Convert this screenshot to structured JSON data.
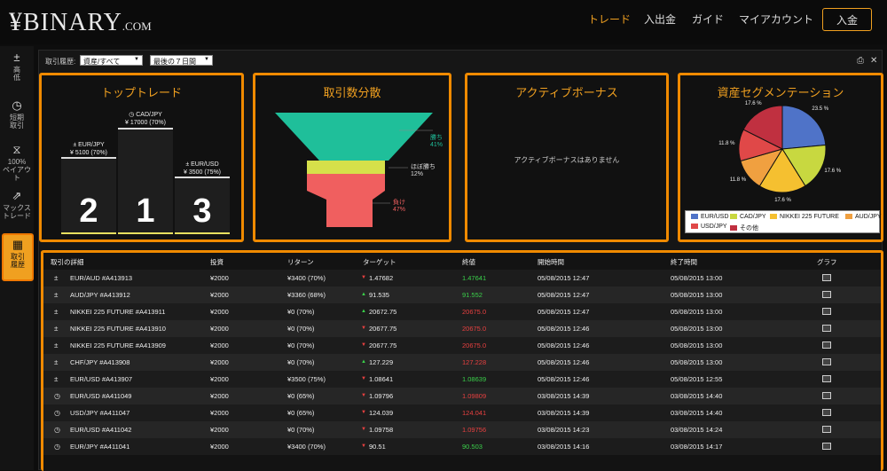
{
  "header": {
    "logo_mark": "¥",
    "logo_text": "BINARY",
    "logo_suffix": ".COM",
    "nav": [
      "トレード",
      "入出金",
      "ガイド",
      "マイアカウント"
    ],
    "deposit_label": "入金"
  },
  "sidebar": {
    "items": [
      {
        "icon": "±",
        "label": "高\n低"
      },
      {
        "icon": "◷",
        "label": "短期\n取引"
      },
      {
        "icon": "⧖",
        "label": "100%\nペイアウト"
      },
      {
        "icon": "⇗",
        "label": "マックス\nトレード"
      },
      {
        "icon": "▦",
        "label": "取引\n履歴"
      }
    ]
  },
  "filters": {
    "label": "取引履歴:",
    "asset_value": "資産/すべて",
    "period_value": "最後の７日間"
  },
  "top_trade": {
    "title": "トップトレード",
    "entries": [
      {
        "rank": "2",
        "asset": "EUR/JPY",
        "amount": "¥ 5100 (70%)"
      },
      {
        "rank": "1",
        "asset": "CAD/JPY",
        "amount": "¥ 17000 (70%)"
      },
      {
        "rank": "3",
        "asset": "EUR/USD",
        "amount": "¥ 3500 (75%)"
      }
    ]
  },
  "distribution": {
    "title": "取引数分散",
    "levels": [
      {
        "label": "勝ち",
        "pct": "41%",
        "color": "#1fbf9a",
        "value": 41
      },
      {
        "label": "ほぼ勝ち",
        "pct": "12%",
        "color": "#d6e04a",
        "value": 12
      },
      {
        "label": "負け",
        "pct": "47%",
        "color": "#f05f5f",
        "value": 47
      }
    ]
  },
  "bonus": {
    "title": "アクティブボーナス",
    "empty_text": "アクティブボーナスはありません"
  },
  "segmentation": {
    "title": "資産セグメンテーション",
    "chart_data": {
      "type": "pie",
      "slices": [
        {
          "name": "EUR/USD",
          "value": 23.5,
          "label": "23.5 %",
          "color": "#4f73c8"
        },
        {
          "name": "CAD/JPY",
          "value": 17.6,
          "label": "17.6 %",
          "color": "#c8d840"
        },
        {
          "name": "NIKKEI 225 FUTURE",
          "value": 17.6,
          "label": "17.6 %",
          "color": "#f5c030"
        },
        {
          "name": "AUD/JPY",
          "value": 11.8,
          "label": "11.8 %",
          "color": "#f0a040"
        },
        {
          "name": "USD/JPY",
          "value": 11.8,
          "label": "11.8 %",
          "color": "#e04848"
        },
        {
          "name": "その他",
          "value": 17.6,
          "label": "17.6 %",
          "color": "#c03040"
        }
      ]
    }
  },
  "table": {
    "headers": [
      "取引の詳細",
      "投資",
      "リターン",
      "ターゲット",
      "終値",
      "開始時間",
      "終了時間",
      "グラフ"
    ],
    "rows": [
      {
        "type": "±",
        "detail": "EUR/AUD #A413913",
        "invest": "¥2000",
        "return": "¥3400 (70%)",
        "dir": "down",
        "target": "1.47682",
        "close": "1.47641",
        "close_dir": "up",
        "start": "05/08/2015 12:47",
        "end": "05/08/2015 13:00"
      },
      {
        "type": "±",
        "detail": "AUD/JPY #A413912",
        "invest": "¥2000",
        "return": "¥3360 (68%)",
        "dir": "up",
        "target": "91.535",
        "close": "91.552",
        "close_dir": "up",
        "start": "05/08/2015 12:47",
        "end": "05/08/2015 13:00"
      },
      {
        "type": "±",
        "detail": "NIKKEI 225 FUTURE #A413911",
        "invest": "¥2000",
        "return": "¥0 (70%)",
        "dir": "up",
        "target": "20672.75",
        "close": "20675.0",
        "close_dir": "down",
        "start": "05/08/2015 12:47",
        "end": "05/08/2015 13:00"
      },
      {
        "type": "±",
        "detail": "NIKKEI 225 FUTURE #A413910",
        "invest": "¥2000",
        "return": "¥0 (70%)",
        "dir": "down",
        "target": "20677.75",
        "close": "20675.0",
        "close_dir": "down",
        "start": "05/08/2015 12:46",
        "end": "05/08/2015 13:00"
      },
      {
        "type": "±",
        "detail": "NIKKEI 225 FUTURE #A413909",
        "invest": "¥2000",
        "return": "¥0 (70%)",
        "dir": "down",
        "target": "20677.75",
        "close": "20675.0",
        "close_dir": "down",
        "start": "05/08/2015 12:46",
        "end": "05/08/2015 13:00"
      },
      {
        "type": "±",
        "detail": "CHF/JPY #A413908",
        "invest": "¥2000",
        "return": "¥0 (70%)",
        "dir": "up",
        "target": "127.229",
        "close": "127.228",
        "close_dir": "down",
        "start": "05/08/2015 12:46",
        "end": "05/08/2015 13:00"
      },
      {
        "type": "±",
        "detail": "EUR/USD #A413907",
        "invest": "¥2000",
        "return": "¥3500 (75%)",
        "dir": "down",
        "target": "1.08641",
        "close": "1.08639",
        "close_dir": "up",
        "start": "05/08/2015 12:46",
        "end": "05/08/2015 12:55"
      },
      {
        "type": "◷",
        "detail": "EUR/USD #A411049",
        "invest": "¥2000",
        "return": "¥0 (65%)",
        "dir": "down",
        "target": "1.09796",
        "close": "1.09809",
        "close_dir": "down",
        "start": "03/08/2015 14:39",
        "end": "03/08/2015 14:40"
      },
      {
        "type": "◷",
        "detail": "USD/JPY #A411047",
        "invest": "¥2000",
        "return": "¥0 (65%)",
        "dir": "down",
        "target": "124.039",
        "close": "124.041",
        "close_dir": "down",
        "start": "03/08/2015 14:39",
        "end": "03/08/2015 14:40"
      },
      {
        "type": "◷",
        "detail": "EUR/USD #A411042",
        "invest": "¥2000",
        "return": "¥0 (70%)",
        "dir": "down",
        "target": "1.09758",
        "close": "1.09756",
        "close_dir": "down",
        "start": "03/08/2015 14:23",
        "end": "03/08/2015 14:24"
      },
      {
        "type": "◷",
        "detail": "EUR/JPY #A411041",
        "invest": "¥2000",
        "return": "¥3400 (70%)",
        "dir": "down",
        "target": "90.51",
        "close": "90.503",
        "close_dir": "up",
        "start": "03/08/2015 14:16",
        "end": "03/08/2015 14:17"
      }
    ]
  }
}
